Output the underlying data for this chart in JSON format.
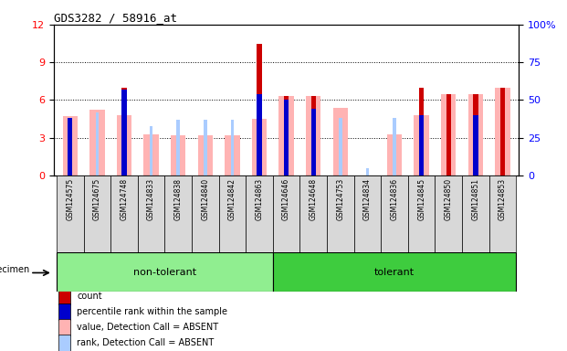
{
  "title": "GDS3282 / 58916_at",
  "samples": [
    "GSM124575",
    "GSM124675",
    "GSM124748",
    "GSM124833",
    "GSM124838",
    "GSM124840",
    "GSM124842",
    "GSM124863",
    "GSM124646",
    "GSM124648",
    "GSM124753",
    "GSM124834",
    "GSM124836",
    "GSM124845",
    "GSM124850",
    "GSM124851",
    "GSM124853"
  ],
  "n_nontolerant": 8,
  "groups": [
    {
      "label": "non-tolerant",
      "color": "#90EE90"
    },
    {
      "label": "tolerant",
      "color": "#3ECC3E"
    }
  ],
  "red_bars": [
    0,
    0,
    7.0,
    0,
    0,
    0,
    0,
    10.5,
    6.3,
    6.3,
    0,
    0,
    0,
    7.0,
    6.5,
    6.5,
    7.0
  ],
  "blue_bars_pct": [
    38,
    0,
    57,
    0,
    0,
    0,
    0,
    54,
    50,
    44,
    0,
    0,
    0,
    40,
    0,
    40,
    0
  ],
  "pink_bars": [
    4.7,
    5.2,
    4.8,
    3.3,
    3.2,
    3.2,
    3.2,
    4.5,
    6.3,
    6.3,
    5.4,
    0,
    3.3,
    4.8,
    6.5,
    6.5,
    7.0
  ],
  "lightblue_bars_pct": [
    0,
    42,
    0,
    33,
    37,
    37,
    37,
    0,
    43,
    0,
    38,
    5,
    38,
    0,
    42,
    0,
    42
  ],
  "ylim_left": [
    0,
    12
  ],
  "ylim_right": [
    0,
    100
  ],
  "yticks_left": [
    0,
    3,
    6,
    9,
    12
  ],
  "yticks_right_vals": [
    0,
    25,
    50,
    75,
    100
  ],
  "yticks_right_labels": [
    "0",
    "25",
    "50",
    "75",
    "100%"
  ],
  "legend_items": [
    {
      "label": "count",
      "color": "#CC0000"
    },
    {
      "label": "percentile rank within the sample",
      "color": "#0000CC"
    },
    {
      "label": "value, Detection Call = ABSENT",
      "color": "#FFB3B3"
    },
    {
      "label": "rank, Detection Call = ABSENT",
      "color": "#AACCFF"
    }
  ],
  "pink_bar_width": 0.55,
  "red_bar_width": 0.18,
  "blue_bar_width": 0.18,
  "lightblue_bar_width": 0.12
}
